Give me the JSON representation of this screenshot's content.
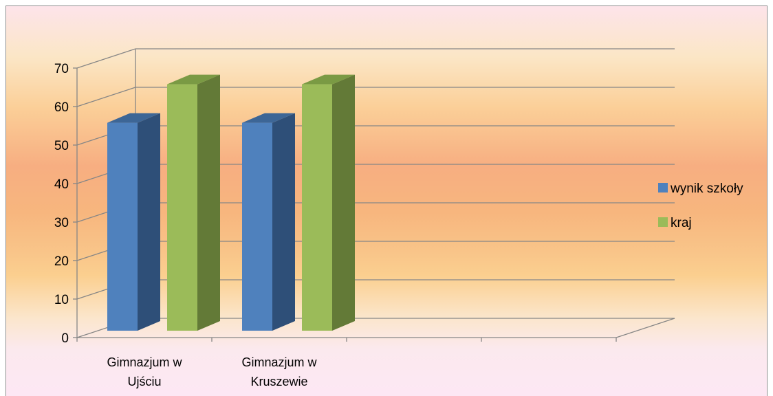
{
  "chart_data": {
    "type": "bar",
    "subtype": "3d-clustered-column",
    "categories": [
      [
        "Gimnazjum w",
        "Ujściu"
      ],
      [
        "Gimnazjum w",
        "Kruszewie"
      ],
      [
        "",
        ""
      ],
      [
        "",
        ""
      ]
    ],
    "series": [
      {
        "name": "wynik szkoły",
        "values": [
          54,
          54,
          null,
          null
        ],
        "color": "#4f81bd",
        "side_color": "#2e4f78",
        "top_color": "#3d6696"
      },
      {
        "name": "kraj",
        "values": [
          64,
          64,
          null,
          null
        ],
        "color": "#9bbb59",
        "side_color": "#637a37",
        "top_color": "#7a9a44"
      }
    ],
    "ylim": [
      0,
      70
    ],
    "yticks": [
      0,
      10,
      20,
      30,
      40,
      50,
      60,
      70
    ],
    "grid": true,
    "legend_position": "right"
  }
}
